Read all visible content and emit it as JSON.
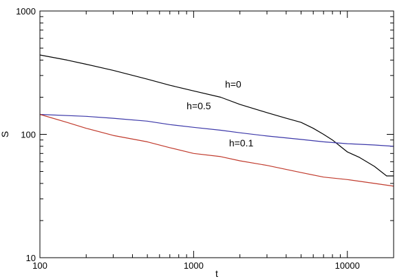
{
  "chart_data": {
    "type": "line",
    "xscale": "log",
    "yscale": "log",
    "xlim": [
      100,
      20000
    ],
    "ylim": [
      10,
      1000
    ],
    "xlabel": "t",
    "ylabel": "S",
    "x_ticks": [
      100,
      1000,
      10000
    ],
    "x_tick_labels": [
      "100",
      "1000",
      "10000"
    ],
    "y_ticks": [
      10,
      100,
      1000
    ],
    "y_tick_labels": [
      "10",
      "100",
      "1000"
    ],
    "grid": false,
    "series": [
      {
        "name": "h=0",
        "color": "#000000",
        "x": [
          100,
          150,
          200,
          300,
          500,
          700,
          1000,
          1500,
          2000,
          3000,
          4000,
          5000,
          6000,
          7000,
          8000,
          9000,
          10000,
          12000,
          15000,
          18000,
          20000
        ],
        "y": [
          440,
          400,
          370,
          330,
          280,
          250,
          225,
          200,
          175,
          150,
          135,
          125,
          112,
          100,
          90,
          80,
          72,
          65,
          55,
          46,
          46
        ]
      },
      {
        "name": "h=0.5",
        "color": "#3a36a8",
        "x": [
          100,
          200,
          300,
          500,
          700,
          1000,
          1500,
          2000,
          3000,
          5000,
          7000,
          10000,
          15000,
          20000
        ],
        "y": [
          145,
          140,
          135,
          128,
          120,
          114,
          108,
          103,
          97,
          91,
          87,
          84,
          82,
          80
        ]
      },
      {
        "name": "h=0.1",
        "color": "#c0392b",
        "x": [
          100,
          150,
          200,
          300,
          500,
          700,
          1000,
          1500,
          2000,
          3000,
          5000,
          7000,
          10000,
          15000,
          20000
        ],
        "y": [
          145,
          125,
          112,
          98,
          87,
          78,
          70,
          66,
          61,
          56,
          49,
          45,
          43,
          40,
          38
        ]
      }
    ],
    "annotations": [
      {
        "text": "h=0",
        "series": "h=0",
        "x": 1600,
        "y": 240
      },
      {
        "text": "h=0.5",
        "series": "h=0.5",
        "x": 900,
        "y": 160
      },
      {
        "text": "h=0.1",
        "series": "h=0.1",
        "x": 1700,
        "y": 80
      }
    ]
  }
}
